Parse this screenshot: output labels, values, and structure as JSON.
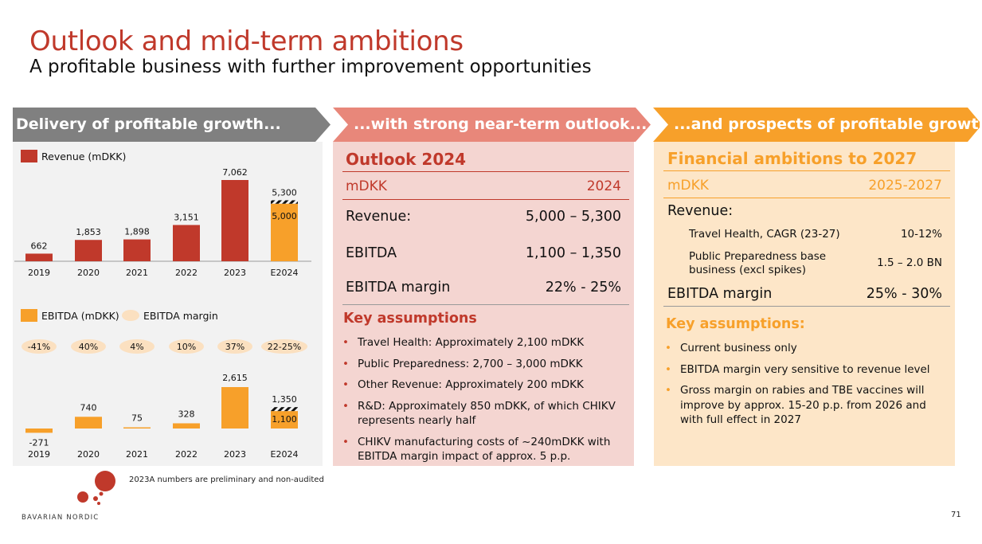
{
  "header": {
    "title": "Outlook and mid-term ambitions",
    "subtitle": "A profitable business with further improvement opportunities"
  },
  "banners": [
    {
      "label": "Delivery of profitable growth...",
      "color": "#808080"
    },
    {
      "label": "...with strong near-term outlook...",
      "color": "#e8877a"
    },
    {
      "label": "...and prospects of profitable growth",
      "color": "#f7a02a"
    }
  ],
  "colors": {
    "revenue": "#c0392b",
    "ebitda": "#f7a02a",
    "margin_oval": "#fbe0c0",
    "title_red": "#c0392b",
    "orange": "#f7a02a"
  },
  "chart_data": [
    {
      "type": "bar",
      "title": "",
      "legend": [
        "Revenue (mDKK)"
      ],
      "categories": [
        "2019",
        "2020",
        "2021",
        "2022",
        "2023",
        "E2024"
      ],
      "series": [
        {
          "name": "Revenue (mDKK)",
          "values": [
            662,
            1853,
            1898,
            3151,
            7062,
            5000
          ]
        }
      ],
      "range_top": {
        "E2024": 5300
      },
      "data_labels": [
        "662",
        "1,853",
        "1,898",
        "3,151",
        "7,062",
        "5,000"
      ],
      "range_label": "5,300",
      "ylim": [
        0,
        7062
      ]
    },
    {
      "type": "bar",
      "title": "",
      "legend": [
        "EBITDA (mDKK)",
        "EBITDA margin"
      ],
      "categories": [
        "2019",
        "2020",
        "2021",
        "2022",
        "2023",
        "E2024"
      ],
      "series": [
        {
          "name": "EBITDA (mDKK)",
          "values": [
            -271,
            740,
            75,
            328,
            2615,
            1100
          ]
        }
      ],
      "range_top": {
        "E2024": 1350
      },
      "data_labels": [
        "-271",
        "740",
        "75",
        "328",
        "2,615",
        "1,100"
      ],
      "range_label": "1,350",
      "margins": [
        "-41%",
        "40%",
        "4%",
        "10%",
        "37%",
        "22-25%"
      ]
    }
  ],
  "outlook": {
    "heading": "Outlook 2024",
    "col_label": "mDKK",
    "col_year": "2024",
    "rows": [
      {
        "label": "Revenue:",
        "value": "5,000 – 5,300"
      },
      {
        "label": "EBITDA",
        "value": "1,100 – 1,350"
      },
      {
        "label": "EBITDA margin",
        "value": "22% - 25%"
      }
    ],
    "assumptions_heading": "Key assumptions",
    "assumptions": [
      "Travel Health: Approximately 2,100 mDKK",
      "Public Preparedness: 2,700 – 3,000 mDKK",
      "Other Revenue: Approximately 200 mDKK",
      "R&D: Approximately 850 mDKK, of which CHIKV represents nearly half",
      "CHIKV manufacturing costs of ~240mDKK with EBITDA margin impact of approx. 5 p.p."
    ]
  },
  "ambitions": {
    "heading": "Financial ambitions to 2027",
    "col_label": "mDKK",
    "col_year": "2025-2027",
    "revenue_label": "Revenue:",
    "sub_rows": [
      {
        "label": "Travel Health, CAGR (23-27)",
        "value": "10-12%"
      },
      {
        "label": "Public Preparedness base business (excl spikes)",
        "value": "1.5 – 2.0 BN"
      }
    ],
    "margin_label": "EBITDA margin",
    "margin_value": "25% - 30%",
    "assumptions_heading": "Key assumptions:",
    "assumptions": [
      "Current business only",
      "EBITDA margin very sensitive to revenue level",
      "Gross margin on rabies and TBE vaccines will improve by approx. 15-20 p.p. from 2026 and with full effect in 2027"
    ]
  },
  "footer": {
    "note": "2023A numbers are preliminary and non-audited",
    "logo": "BAVARIAN NORDIC",
    "page": "71"
  }
}
